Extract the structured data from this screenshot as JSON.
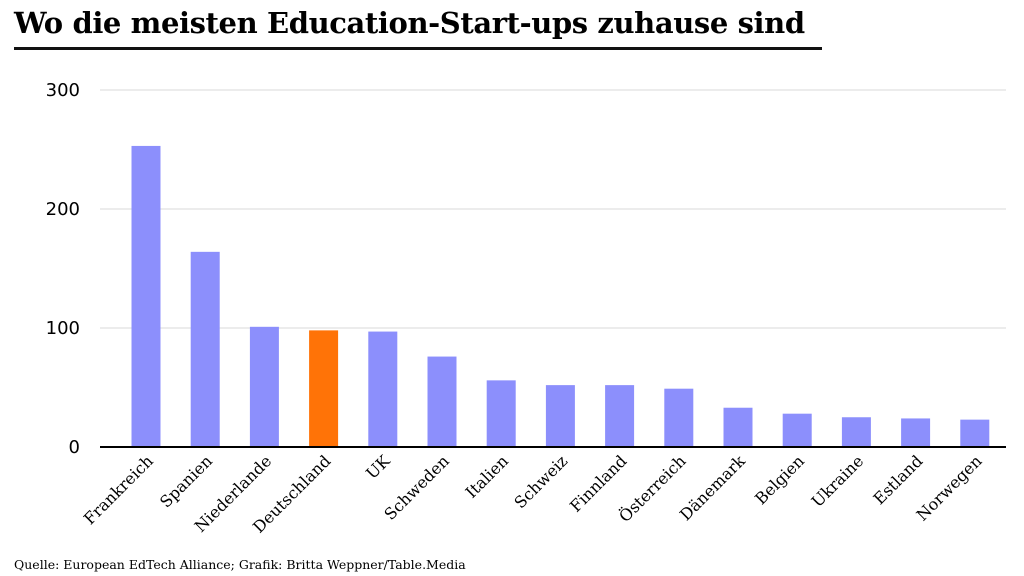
{
  "title": "Wo die meisten Education-Start-ups zuhause sind",
  "source": "Quelle: European EdTech Alliance; Grafik: Britta Weppner/Table.Media",
  "colors": {
    "bar": "#8c8ffc",
    "highlight": "#ff7307",
    "grid": "#d9d9d9",
    "axis": "#000000"
  },
  "chart_data": {
    "type": "bar",
    "title": "Wo die meisten Education-Start-ups zuhause sind",
    "xlabel": "",
    "ylabel": "",
    "ylim": [
      0,
      300
    ],
    "yticks": [
      0,
      100,
      200,
      300
    ],
    "grid": true,
    "legend": "none",
    "highlight_category": "Deutschland",
    "categories": [
      "Frankreich",
      "Spanien",
      "Niederlande",
      "Deutschland",
      "UK",
      "Schweden",
      "Italien",
      "Schweiz",
      "Finnland",
      "Österreich",
      "Dänemark",
      "Belgien",
      "Ukraine",
      "Estland",
      "Norwegen"
    ],
    "values": [
      253,
      164,
      101,
      98,
      97,
      76,
      56,
      52,
      52,
      49,
      33,
      28,
      25,
      24,
      23
    ]
  }
}
